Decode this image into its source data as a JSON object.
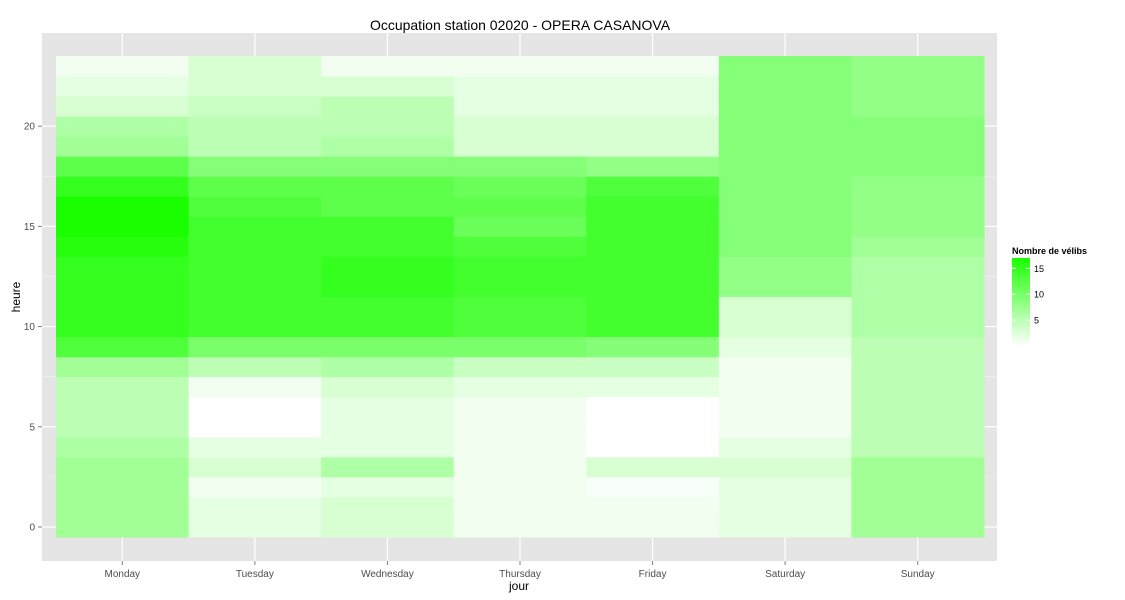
{
  "chart_data": {
    "type": "heatmap",
    "title": "Occupation station 02020 - OPERA CASANOVA",
    "xlabel": "jour",
    "ylabel": "heure",
    "x_categories": [
      "Monday",
      "Tuesday",
      "Wednesday",
      "Thursday",
      "Friday",
      "Saturday",
      "Sunday"
    ],
    "y_values": [
      0,
      1,
      2,
      3,
      4,
      5,
      6,
      7,
      8,
      9,
      10,
      11,
      12,
      13,
      14,
      15,
      16,
      17,
      18,
      19,
      20,
      21,
      22,
      23
    ],
    "y_ticks": [
      0,
      5,
      10,
      15,
      20
    ],
    "ylim": [
      -0.5,
      23.5
    ],
    "grid": true,
    "values": [
      [
        7,
        2,
        3,
        1,
        1,
        2,
        7
      ],
      [
        7,
        2,
        3,
        1,
        1,
        2,
        7
      ],
      [
        7,
        1,
        2,
        1,
        0.5,
        2,
        7
      ],
      [
        7,
        3,
        6,
        1,
        3,
        3,
        7
      ],
      [
        6,
        2,
        2,
        1,
        0,
        2,
        5
      ],
      [
        5,
        0,
        2,
        1,
        0,
        1,
        5
      ],
      [
        5,
        0,
        2,
        1,
        0,
        1,
        5
      ],
      [
        5,
        1,
        3,
        2,
        2,
        1,
        5
      ],
      [
        7,
        5,
        6,
        4,
        4,
        1,
        5
      ],
      [
        13,
        10,
        10,
        10,
        9,
        2,
        5
      ],
      [
        15,
        14,
        14,
        13,
        14,
        3,
        6
      ],
      [
        15,
        14,
        14,
        13,
        14,
        3,
        6
      ],
      [
        15,
        14,
        15,
        14,
        14,
        8,
        6
      ],
      [
        15,
        14,
        15,
        14,
        14,
        8,
        6
      ],
      [
        16,
        14,
        14,
        13,
        14,
        9,
        7
      ],
      [
        17,
        14,
        14,
        11,
        14,
        9,
        8
      ],
      [
        17,
        13,
        12,
        12,
        14,
        9,
        8
      ],
      [
        15,
        12,
        12,
        11,
        13,
        9,
        8
      ],
      [
        12,
        9,
        9,
        9,
        8,
        9,
        9
      ],
      [
        7,
        5,
        6,
        3,
        3,
        9,
        9
      ],
      [
        6,
        5,
        5,
        3,
        3,
        9,
        9
      ],
      [
        3,
        4,
        5,
        2,
        2,
        9,
        8
      ],
      [
        2,
        3,
        3,
        2,
        2,
        9,
        8
      ],
      [
        1,
        3,
        1,
        1,
        1,
        9,
        8
      ]
    ],
    "scale": {
      "low_color": "#ffffff",
      "high_color": "#1aff00",
      "min": 0,
      "max": 17
    }
  },
  "legend": {
    "title": "Nombre de vélibs",
    "breaks": [
      "15",
      "10",
      "5"
    ]
  },
  "colors": {
    "panel_background": "#e5e5e5",
    "grid_line": "#ffffff"
  }
}
